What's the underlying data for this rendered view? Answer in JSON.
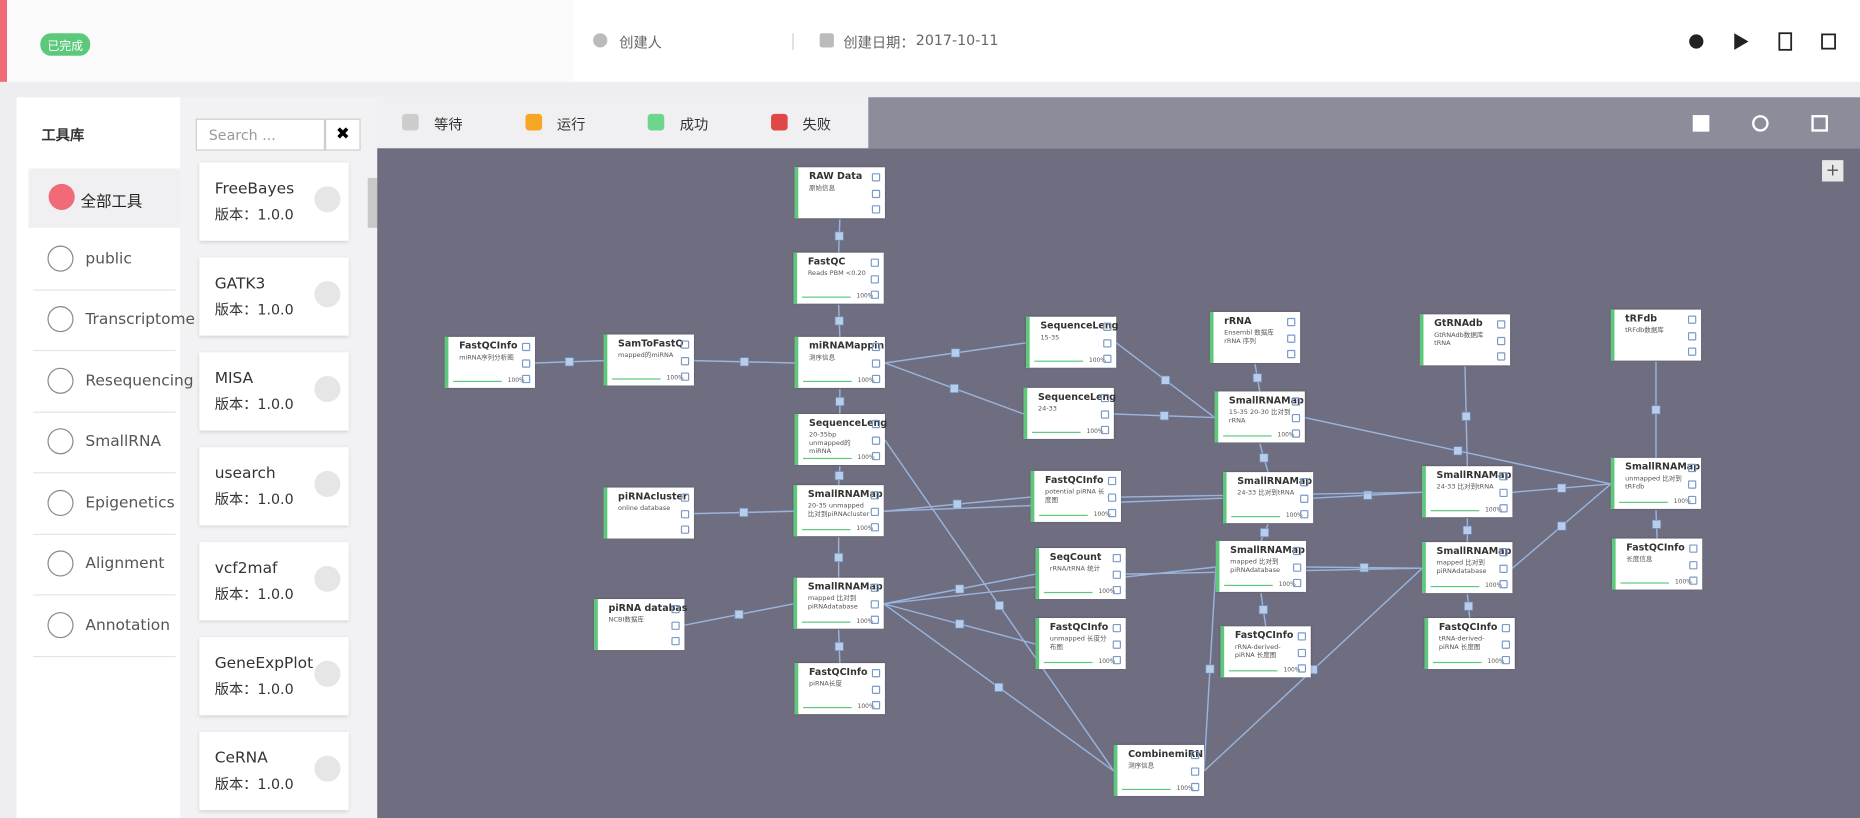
{
  "header": {
    "status": "已完成",
    "creator": "创建人",
    "date_label": "创建日期：",
    "date": "2017-10-11"
  },
  "sidebar": {
    "title": "工具库",
    "categories": [
      "全部工具",
      "public",
      "Transcriptome",
      "Resequencing",
      "SmallRNA",
      "Epigenetics",
      "Alignment",
      "Annotation"
    ]
  },
  "search": {
    "placeholder": "Search ..."
  },
  "tools": [
    {
      "name": "FreeBayes",
      "version": "版本：1.0.0"
    },
    {
      "name": "GATK3",
      "version": "版本：1.0.0"
    },
    {
      "name": "MISA",
      "version": "版本：1.0.0"
    },
    {
      "name": "usearch",
      "version": "版本：1.0.0"
    },
    {
      "name": "vcf2maf",
      "version": "版本：1.0.0"
    },
    {
      "name": "GeneExpPlot",
      "version": "版本：1.0.0"
    },
    {
      "name": "CeRNA",
      "version": "版本：1.0.0"
    }
  ],
  "legend": [
    {
      "label": "等待",
      "color": "#cccccc"
    },
    {
      "label": "运行",
      "color": "#f5a623"
    },
    {
      "label": "成功",
      "color": "#6dd68c"
    },
    {
      "label": "失败",
      "color": "#e04848"
    }
  ],
  "nodes": [
    {
      "label": "RAW Data",
      "desc": "原始信息"
    },
    {
      "label": "FastQC",
      "desc": "Reads PBM <0.20",
      "progress": "100%"
    },
    {
      "label": "FastQCInfo",
      "desc": "miRNA序列分析图",
      "progress": "100%"
    },
    {
      "label": "SamToFastQ",
      "desc": "mapped的miRNA",
      "progress": "100%"
    },
    {
      "label": "miRNAMappin",
      "desc": "测序信息",
      "progress": "100%"
    },
    {
      "label": "SequenceLeng",
      "desc": "20-35bp unmapped的miRNA",
      "progress": "100%"
    },
    {
      "label": "piRNAcluster",
      "desc": "online database"
    },
    {
      "label": "SmallRNAMap",
      "desc": "20-35 unmapped 比对到piRNAcluster",
      "progress": "100%"
    },
    {
      "label": "piRNA databas",
      "desc": "NCBI数据库"
    },
    {
      "label": "SmallRNAMap",
      "desc": "mapped 比对到 piRNAdatabase",
      "progress": "100%"
    },
    {
      "label": "FastQCInfo",
      "desc": "piRNA长度",
      "progress": "100%"
    },
    {
      "label": "SequenceLeng",
      "desc": "15-35",
      "progress": "100%"
    },
    {
      "label": "SequenceLeng",
      "desc": "24-33",
      "progress": "100%"
    },
    {
      "label": "FastQCInfo",
      "desc": "potential piRNA 长度图",
      "progress": "100%"
    },
    {
      "label": "SeqCount",
      "desc": "rRNA/tRNA 统计",
      "progress": "100%"
    },
    {
      "label": "FastQCInfo",
      "desc": "unmapped 长度分布图",
      "progress": "100%"
    },
    {
      "label": "rRNA",
      "desc": "Ensembl 数据库rRNA 序列"
    },
    {
      "label": "SmallRNAMap",
      "desc": "15-35 20-30 比对到 rRNA",
      "progress": "100%"
    },
    {
      "label": "SmallRNAMap",
      "desc": "24-33 比对到tRNA",
      "progress": "100%"
    },
    {
      "label": "SmallRNAMap",
      "desc": "mapped 比对到 piRNAdatabase",
      "progress": "100%"
    },
    {
      "label": "FastQCInfo",
      "desc": "rRNA-derived-piRNA 长度图",
      "progress": "100%"
    },
    {
      "label": "GtRNAdb",
      "desc": "GtRNAdb数据库 tRNA",
      "progress": null
    },
    {
      "label": "SmallRNAMap",
      "desc": "24-33 比对到tRNA",
      "progress": "100%"
    },
    {
      "label": "SmallRNAMap",
      "desc": "mapped 比对到 piRNAdatabase",
      "progress": "100%"
    },
    {
      "label": "FastQCInfo",
      "desc": "tRNA-derived-piRNA 长度图",
      "progress": "100%"
    },
    {
      "label": "tRFdb",
      "desc": "tRFdb数据库"
    },
    {
      "label": "SmallRNAMap",
      "desc": "unmapped 比对到 tRFdb",
      "progress": "100%"
    },
    {
      "label": "FastQCInfo",
      "desc": "长度信息",
      "progress": "100%"
    },
    {
      "label": "CombinemiRN",
      "desc": "测序信息",
      "progress": "100%"
    }
  ]
}
